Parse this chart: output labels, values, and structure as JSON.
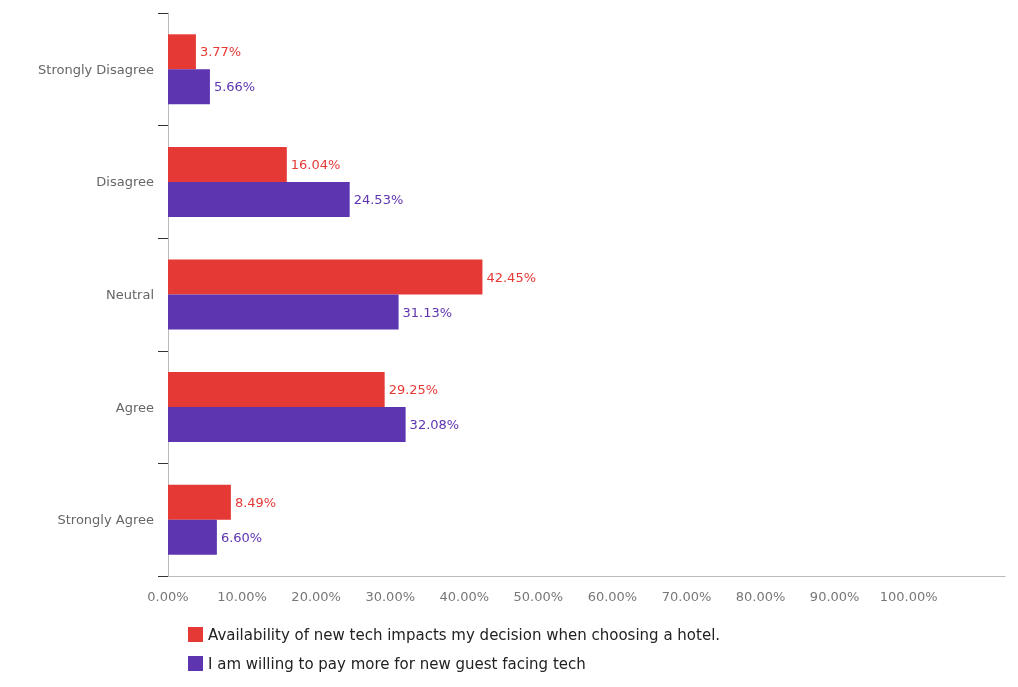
{
  "chart_data": {
    "type": "bar",
    "orientation": "horizontal",
    "categories": [
      "Strongly Disagree",
      "Disagree",
      "Neutral",
      "Agree",
      "Strongly Agree"
    ],
    "series": [
      {
        "name": "Availability of new tech impacts my decision when choosing a hotel.",
        "color": "#e53935",
        "values": [
          3.77,
          16.04,
          42.45,
          29.25,
          8.49
        ],
        "value_labels": [
          "3.77%",
          "16.04%",
          "42.45%",
          "29.25%",
          "8.49%"
        ]
      },
      {
        "name": "I am willing to pay more for new guest facing tech",
        "color": "#5e35b1",
        "values": [
          5.66,
          24.53,
          31.13,
          32.08,
          6.6
        ],
        "value_labels": [
          "5.66%",
          "24.53%",
          "31.13%",
          "32.08%",
          "6.60%"
        ]
      }
    ],
    "xlim": [
      0,
      113
    ],
    "xticks": [
      {
        "value": 0,
        "label": "0.00%"
      },
      {
        "value": 10,
        "label": "10.00%"
      },
      {
        "value": 20,
        "label": "20.00%"
      },
      {
        "value": 30,
        "label": "30.00%"
      },
      {
        "value": 40,
        "label": "40.00%"
      },
      {
        "value": 50,
        "label": "50.00%"
      },
      {
        "value": 60,
        "label": "60.00%"
      },
      {
        "value": 70,
        "label": "70.00%"
      },
      {
        "value": 80,
        "label": "80.00%"
      },
      {
        "value": 90,
        "label": "90.00%"
      },
      {
        "value": 100,
        "label": "100.00%"
      }
    ],
    "grid": false,
    "legend": "bottom"
  }
}
